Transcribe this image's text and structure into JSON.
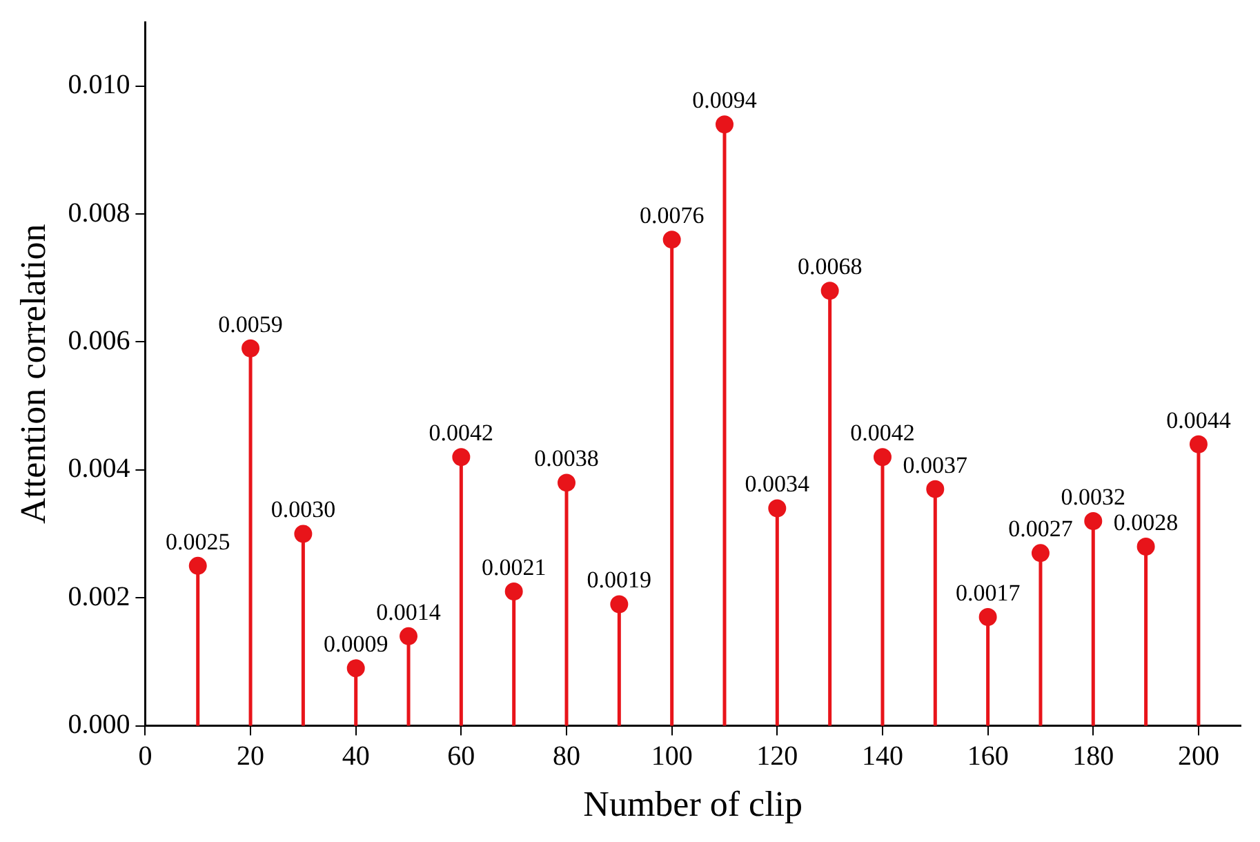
{
  "chart_data": {
    "type": "lollipop",
    "xlabel": "Number of clip",
    "ylabel": "Attention correlation",
    "x": [
      10,
      20,
      30,
      40,
      50,
      60,
      70,
      80,
      90,
      100,
      110,
      120,
      130,
      140,
      150,
      160,
      170,
      180,
      190,
      200
    ],
    "values": [
      0.0025,
      0.0059,
      0.003,
      0.0009,
      0.0014,
      0.0042,
      0.0021,
      0.0038,
      0.0019,
      0.0076,
      0.0094,
      0.0034,
      0.0068,
      0.0042,
      0.0037,
      0.0017,
      0.0027,
      0.0032,
      0.0028,
      0.0044
    ],
    "value_labels": [
      "0.0025",
      "0.0059",
      "0.0030",
      "0.0009",
      "0.0014",
      "0.0042",
      "0.0021",
      "0.0038",
      "0.0019",
      "0.0076",
      "0.0094",
      "0.0034",
      "0.0068",
      "0.0042",
      "0.0037",
      "0.0017",
      "0.0027",
      "0.0032",
      "0.0028",
      "0.0044"
    ],
    "color": "#e8141a",
    "marker": "circle",
    "grid": false,
    "legend": false,
    "xlim": [
      0,
      208
    ],
    "xticks": [
      0,
      20,
      40,
      60,
      80,
      100,
      120,
      140,
      160,
      180,
      200
    ],
    "ylim": [
      0,
      0.011
    ],
    "yticks": [
      {
        "value": 0,
        "label": "0.000"
      },
      {
        "value": 0.002,
        "label": "0.002"
      },
      {
        "value": 0.004,
        "label": "0.004"
      },
      {
        "value": 0.006,
        "label": "0.006"
      },
      {
        "value": 0.008,
        "label": "0.008"
      },
      {
        "value": 0.01,
        "label": "0.010"
      }
    ]
  }
}
